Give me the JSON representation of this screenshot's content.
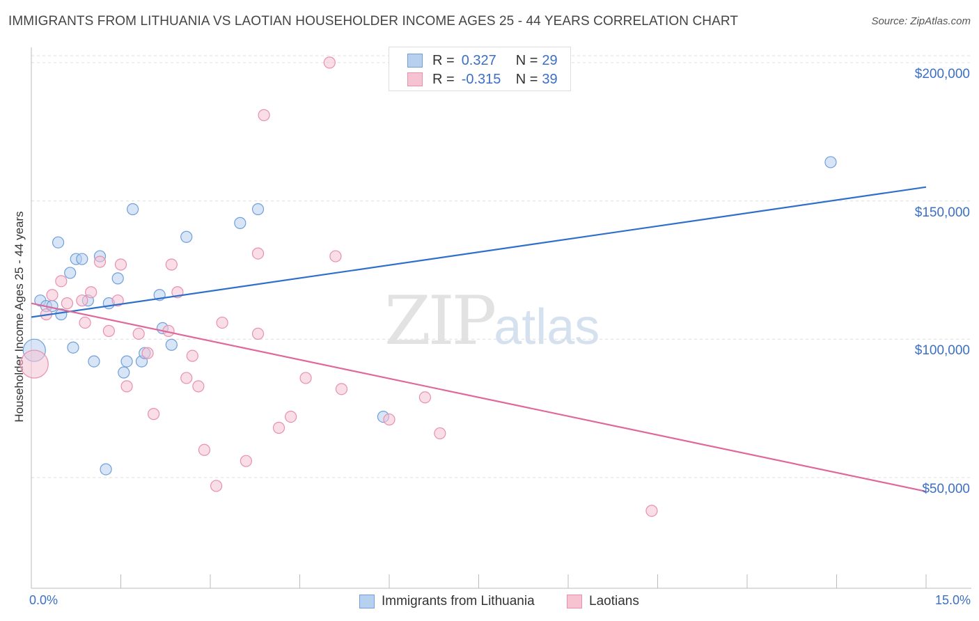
{
  "header": {
    "title": "IMMIGRANTS FROM LITHUANIA VS LAOTIAN HOUSEHOLDER INCOME AGES 25 - 44 YEARS CORRELATION CHART",
    "source": "Source: ZipAtlas.com"
  },
  "watermark": {
    "zip": "ZIP",
    "atlas": "atlas"
  },
  "legend_top": {
    "rows": [
      {
        "r_label": "R = ",
        "r_value": "0.327",
        "n_label": "N = ",
        "n_value": "29"
      },
      {
        "r_label": "R = ",
        "r_value": "-0.315",
        "n_label": "N = ",
        "n_value": "39"
      }
    ]
  },
  "legend_bottom": {
    "items": [
      {
        "label": "Immigrants from Lithuania"
      },
      {
        "label": "Laotians"
      }
    ]
  },
  "colors": {
    "series1_fill": "#b8d0f0",
    "series1_stroke": "#6f9fd8",
    "series1_line": "#2f6fcc",
    "series2_fill": "#f6c3d3",
    "series2_stroke": "#e890ac",
    "series2_line": "#e0679a",
    "tick_label": "#3b6fc4"
  },
  "chart_data": {
    "type": "scatter",
    "title": "IMMIGRANTS FROM LITHUANIA VS LAOTIAN HOUSEHOLDER INCOME AGES 25 - 44 YEARS CORRELATION CHART",
    "xlabel": "",
    "ylabel": "Householder Income Ages 25 - 44 years",
    "xlim": [
      0,
      15
    ],
    "ylim": [
      10000,
      205000
    ],
    "x_tick_labels": [
      "0.0%",
      "15.0%"
    ],
    "y_ticks": [
      50000,
      100000,
      150000,
      200000
    ],
    "y_tick_labels": [
      "$50,000",
      "$100,000",
      "$150,000",
      "$200,000"
    ],
    "grid": true,
    "series": [
      {
        "name": "Immigrants from Lithuania",
        "points": [
          [
            0.05,
            96000
          ],
          [
            0.15,
            114000
          ],
          [
            0.25,
            112000
          ],
          [
            0.35,
            112000
          ],
          [
            0.5,
            109000
          ],
          [
            0.45,
            135000
          ],
          [
            0.65,
            124000
          ],
          [
            0.7,
            97000
          ],
          [
            0.75,
            129000
          ],
          [
            0.85,
            129000
          ],
          [
            0.95,
            114000
          ],
          [
            1.05,
            92000
          ],
          [
            1.15,
            130000
          ],
          [
            1.3,
            113000
          ],
          [
            1.45,
            122000
          ],
          [
            1.55,
            88000
          ],
          [
            1.6,
            92000
          ],
          [
            1.7,
            147000
          ],
          [
            1.85,
            92000
          ],
          [
            1.9,
            95000
          ],
          [
            2.15,
            116000
          ],
          [
            2.2,
            104000
          ],
          [
            2.35,
            98000
          ],
          [
            2.6,
            137000
          ],
          [
            3.5,
            142000
          ],
          [
            3.8,
            147000
          ],
          [
            1.25,
            53000
          ],
          [
            5.9,
            72000
          ],
          [
            13.4,
            164000
          ]
        ],
        "trend": {
          "x": [
            0,
            15
          ],
          "y": [
            108000,
            155000
          ]
        }
      },
      {
        "name": "Laotians",
        "points": [
          [
            0.05,
            91000
          ],
          [
            0.25,
            109000
          ],
          [
            0.35,
            116000
          ],
          [
            0.5,
            121000
          ],
          [
            0.6,
            113000
          ],
          [
            0.85,
            114000
          ],
          [
            0.9,
            106000
          ],
          [
            1.0,
            117000
          ],
          [
            1.15,
            128000
          ],
          [
            1.3,
            103000
          ],
          [
            1.45,
            114000
          ],
          [
            1.5,
            127000
          ],
          [
            1.6,
            83000
          ],
          [
            1.8,
            102000
          ],
          [
            1.95,
            95000
          ],
          [
            2.05,
            73000
          ],
          [
            2.3,
            103000
          ],
          [
            2.35,
            127000
          ],
          [
            2.45,
            117000
          ],
          [
            2.6,
            86000
          ],
          [
            2.7,
            94000
          ],
          [
            2.8,
            83000
          ],
          [
            2.9,
            60000
          ],
          [
            3.1,
            47000
          ],
          [
            3.2,
            106000
          ],
          [
            3.6,
            56000
          ],
          [
            3.8,
            102000
          ],
          [
            3.8,
            131000
          ],
          [
            3.9,
            181000
          ],
          [
            4.15,
            68000
          ],
          [
            4.35,
            72000
          ],
          [
            4.6,
            86000
          ],
          [
            5.0,
            200000
          ],
          [
            5.1,
            130000
          ],
          [
            5.2,
            82000
          ],
          [
            6.0,
            71000
          ],
          [
            6.6,
            79000
          ],
          [
            6.85,
            66000
          ],
          [
            10.4,
            38000
          ]
        ],
        "trend": {
          "x": [
            0,
            15
          ],
          "y": [
            113000,
            45000
          ]
        }
      }
    ]
  }
}
